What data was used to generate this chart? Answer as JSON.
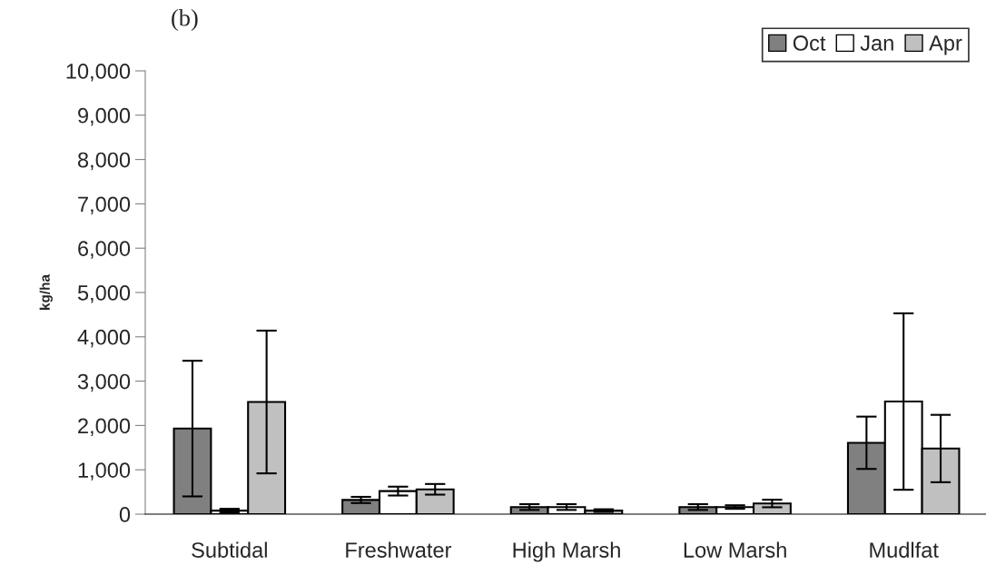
{
  "chart_data": {
    "type": "bar",
    "title": "(b)",
    "ylabel": "kg/ha",
    "categories": [
      "Subtidal",
      "Freshwater",
      "High Marsh",
      "Low Marsh",
      "Mudlfat"
    ],
    "series": [
      {
        "name": "Oct",
        "color": "#808080",
        "values": [
          1930,
          320,
          160,
          160,
          1610
        ],
        "errors": [
          1530,
          70,
          65,
          65,
          590
        ]
      },
      {
        "name": "Jan",
        "color": "#ffffff",
        "values": [
          80,
          520,
          160,
          160,
          2540
        ],
        "errors": [
          40,
          100,
          65,
          40,
          1990
        ]
      },
      {
        "name": "Apr",
        "color": "#c0c0c0",
        "values": [
          2530,
          560,
          80,
          240,
          1480
        ],
        "errors": [
          1610,
          120,
          30,
          85,
          760
        ]
      }
    ],
    "ylim": [
      0,
      10000
    ],
    "yticks": [
      {
        "value": 0,
        "label": "0"
      },
      {
        "value": 1000,
        "label": "1,000"
      },
      {
        "value": 2000,
        "label": "2,000"
      },
      {
        "value": 3000,
        "label": "3,000"
      },
      {
        "value": 4000,
        "label": "4,000"
      },
      {
        "value": 5000,
        "label": "5,000"
      },
      {
        "value": 6000,
        "label": "6,000"
      },
      {
        "value": 7000,
        "label": "7,000"
      },
      {
        "value": 8000,
        "label": "8,000"
      },
      {
        "value": 9000,
        "label": "9,000"
      },
      {
        "value": 10000,
        "label": "10,000"
      }
    ],
    "grid": false,
    "legend": "top right"
  }
}
